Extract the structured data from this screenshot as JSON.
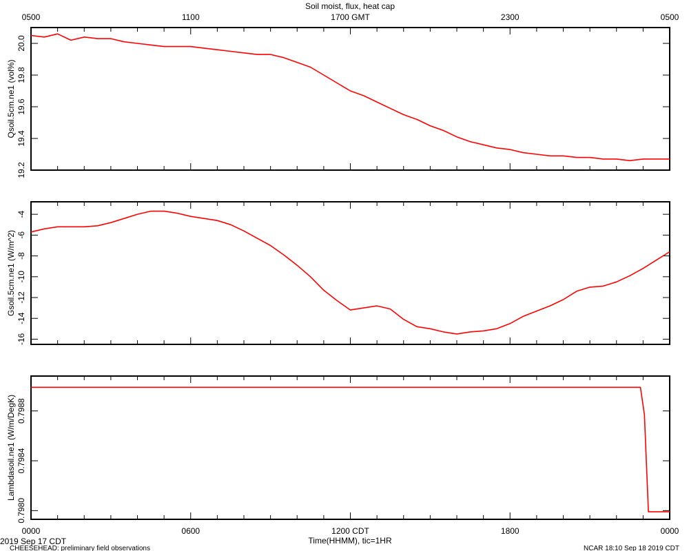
{
  "top_title": "Soil moist, flux, heat cap",
  "footer": {
    "date_label": "2019 Sep 17 CDT",
    "xlabel": "Time(HHMM), tic=1HR",
    "left_note": "CHEESEHEAD: preliminary field observations",
    "right_note": "NCAR 18:10 Sep 18 2019 CDT"
  },
  "series_color": "#ff0000",
  "chart_data": [
    {
      "type": "line",
      "title": "Soil moist, flux, heat cap",
      "ylabel": "Qsoil.5cm.ne1 (vol%)",
      "top_axis_labels": [
        "0500",
        "1100",
        "1700 GMT",
        "2300",
        "0500"
      ],
      "yticks": [
        "19.2",
        "19.4",
        "19.6",
        "19.8",
        "20.0"
      ],
      "ylim": [
        19.2,
        20.1
      ],
      "xlim": [
        0,
        24
      ],
      "x": [
        0,
        0.5,
        1,
        1.5,
        2,
        2.5,
        3,
        3.5,
        4,
        4.5,
        5,
        5.5,
        6,
        6.5,
        7,
        7.5,
        8,
        8.5,
        9,
        9.5,
        10,
        10.5,
        11,
        11.5,
        12,
        12.5,
        13,
        13.5,
        14,
        14.5,
        15,
        15.5,
        16,
        16.5,
        17,
        17.5,
        18,
        18.5,
        19,
        19.5,
        20,
        20.5,
        21,
        21.5,
        22,
        22.5,
        23,
        23.5,
        24
      ],
      "y": [
        20.05,
        20.04,
        20.06,
        20.02,
        20.04,
        20.03,
        20.03,
        20.01,
        20.0,
        19.99,
        19.98,
        19.98,
        19.98,
        19.97,
        19.96,
        19.95,
        19.94,
        19.93,
        19.93,
        19.91,
        19.88,
        19.85,
        19.8,
        19.75,
        19.7,
        19.67,
        19.63,
        19.59,
        19.55,
        19.52,
        19.48,
        19.45,
        19.41,
        19.38,
        19.36,
        19.34,
        19.33,
        19.31,
        19.3,
        19.29,
        19.29,
        19.28,
        19.28,
        19.27,
        19.27,
        19.26,
        19.27,
        19.27,
        19.27
      ]
    },
    {
      "type": "line",
      "ylabel": "Gsoil.5cm.ne1 (W/m^2)",
      "yticks": [
        "-16",
        "-14",
        "-12",
        "-10",
        "-8",
        "-6",
        "-4"
      ],
      "ylim": [
        -16.5,
        -2.8
      ],
      "xlim": [
        0,
        24
      ],
      "x": [
        0,
        0.5,
        1,
        1.5,
        2,
        2.5,
        3,
        3.5,
        4,
        4.5,
        5,
        5.5,
        6,
        6.5,
        7,
        7.5,
        8,
        8.5,
        9,
        9.5,
        10,
        10.5,
        11,
        11.5,
        12,
        12.5,
        13,
        13.5,
        14,
        14.5,
        15,
        15.5,
        16,
        16.5,
        17,
        17.5,
        18,
        18.5,
        19,
        19.5,
        20,
        20.5,
        21,
        21.5,
        22,
        22.5,
        23,
        23.5,
        24
      ],
      "y": [
        -5.7,
        -5.4,
        -5.2,
        -5.2,
        -5.2,
        -5.1,
        -4.8,
        -4.4,
        -4.0,
        -3.7,
        -3.7,
        -3.9,
        -4.2,
        -4.4,
        -4.6,
        -5.0,
        -5.6,
        -6.3,
        -7.0,
        -7.9,
        -8.9,
        -10.0,
        -11.3,
        -12.3,
        -13.2,
        -13.0,
        -12.8,
        -13.1,
        -14.1,
        -14.8,
        -15.0,
        -15.3,
        -15.5,
        -15.3,
        -15.2,
        -15.0,
        -14.5,
        -13.8,
        -13.3,
        -12.8,
        -12.2,
        -11.4,
        -11.0,
        -10.9,
        -10.5,
        -9.9,
        -9.2,
        -8.4,
        -7.6
      ]
    },
    {
      "type": "line",
      "ylabel": "Lambdasoil.ne1 (W/m/DegK)",
      "yticks": [
        "0.7980",
        "0.7984",
        "0.7988"
      ],
      "ylim": [
        0.79793,
        0.79908
      ],
      "xlim": [
        0,
        24
      ],
      "bottom_axis_labels": [
        "0000",
        "0600",
        "1200 CDT",
        "1800",
        "0000"
      ],
      "x": [
        0,
        22.9,
        23.05,
        23.2,
        24
      ],
      "y": [
        0.79899,
        0.79899,
        0.79877,
        0.79799,
        0.79799
      ]
    }
  ]
}
